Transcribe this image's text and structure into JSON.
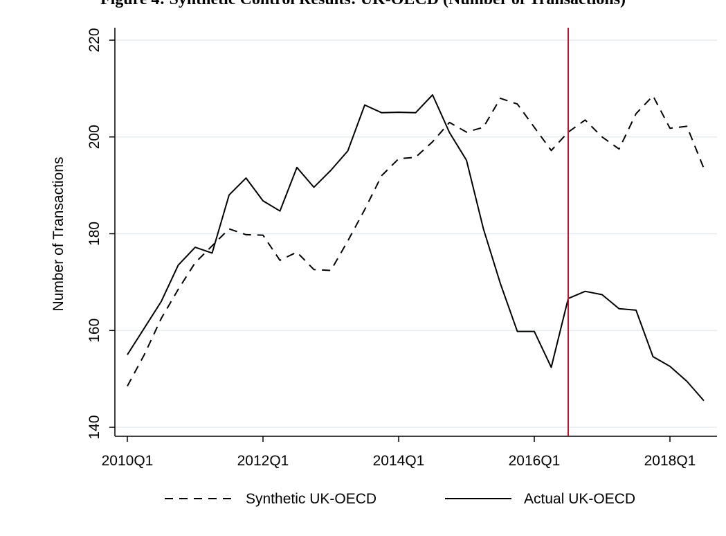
{
  "page": {
    "top_title": "Figure 4: Synthetic Control Results: UK-OECD (Number of Transactions)"
  },
  "chart_data": {
    "type": "line",
    "title": "",
    "xlabel": "",
    "ylabel": "Number of Transactions",
    "ylim": [
      140,
      220
    ],
    "yticks": [
      140,
      160,
      180,
      200,
      220
    ],
    "xticks": [
      "2010Q1",
      "2012Q1",
      "2014Q1",
      "2016Q1",
      "2018Q1"
    ],
    "x": [
      "2010Q1",
      "2010Q2",
      "2010Q3",
      "2010Q4",
      "2011Q1",
      "2011Q2",
      "2011Q3",
      "2011Q4",
      "2012Q1",
      "2012Q2",
      "2012Q3",
      "2012Q4",
      "2013Q1",
      "2013Q2",
      "2013Q3",
      "2013Q4",
      "2014Q1",
      "2014Q2",
      "2014Q3",
      "2014Q4",
      "2015Q1",
      "2015Q2",
      "2015Q3",
      "2015Q4",
      "2016Q1",
      "2016Q2",
      "2016Q3",
      "2016Q4",
      "2017Q1",
      "2017Q2",
      "2017Q3",
      "2017Q4",
      "2018Q1",
      "2018Q2",
      "2018Q3"
    ],
    "series": [
      {
        "name": "Synthetic UK-OECD",
        "style": "dashed",
        "color": "#000000",
        "values": [
          148.5,
          155.0,
          162.5,
          168.5,
          174.0,
          177.5,
          181.0,
          179.8,
          179.7,
          174.5,
          176.2,
          172.6,
          172.4,
          178.5,
          185.0,
          192.0,
          195.5,
          195.8,
          199.0,
          203.0,
          201.0,
          202.0,
          208.0,
          206.8,
          202.0,
          197.2,
          201.0,
          203.5,
          200.0,
          197.5,
          204.8,
          208.5,
          201.8,
          202.2,
          193.5
        ]
      },
      {
        "name": "Actual UK-OECD",
        "style": "solid",
        "color": "#000000",
        "values": [
          155.0,
          160.5,
          166.0,
          173.5,
          177.2,
          176.0,
          188.0,
          191.5,
          186.8,
          184.7,
          193.7,
          189.6,
          193.1,
          197.1,
          206.6,
          205.0,
          205.1,
          205.0,
          208.7,
          200.9,
          195.2,
          181.0,
          169.7,
          159.8,
          159.8,
          152.4,
          166.6,
          168.1,
          167.4,
          164.5,
          164.2,
          154.6,
          152.6,
          149.5,
          145.5
        ]
      }
    ],
    "vline": {
      "x": "2016Q3",
      "color": "#c8102e"
    },
    "grid": true,
    "grid_color": "#e6ecef",
    "legend_position": "bottom"
  }
}
